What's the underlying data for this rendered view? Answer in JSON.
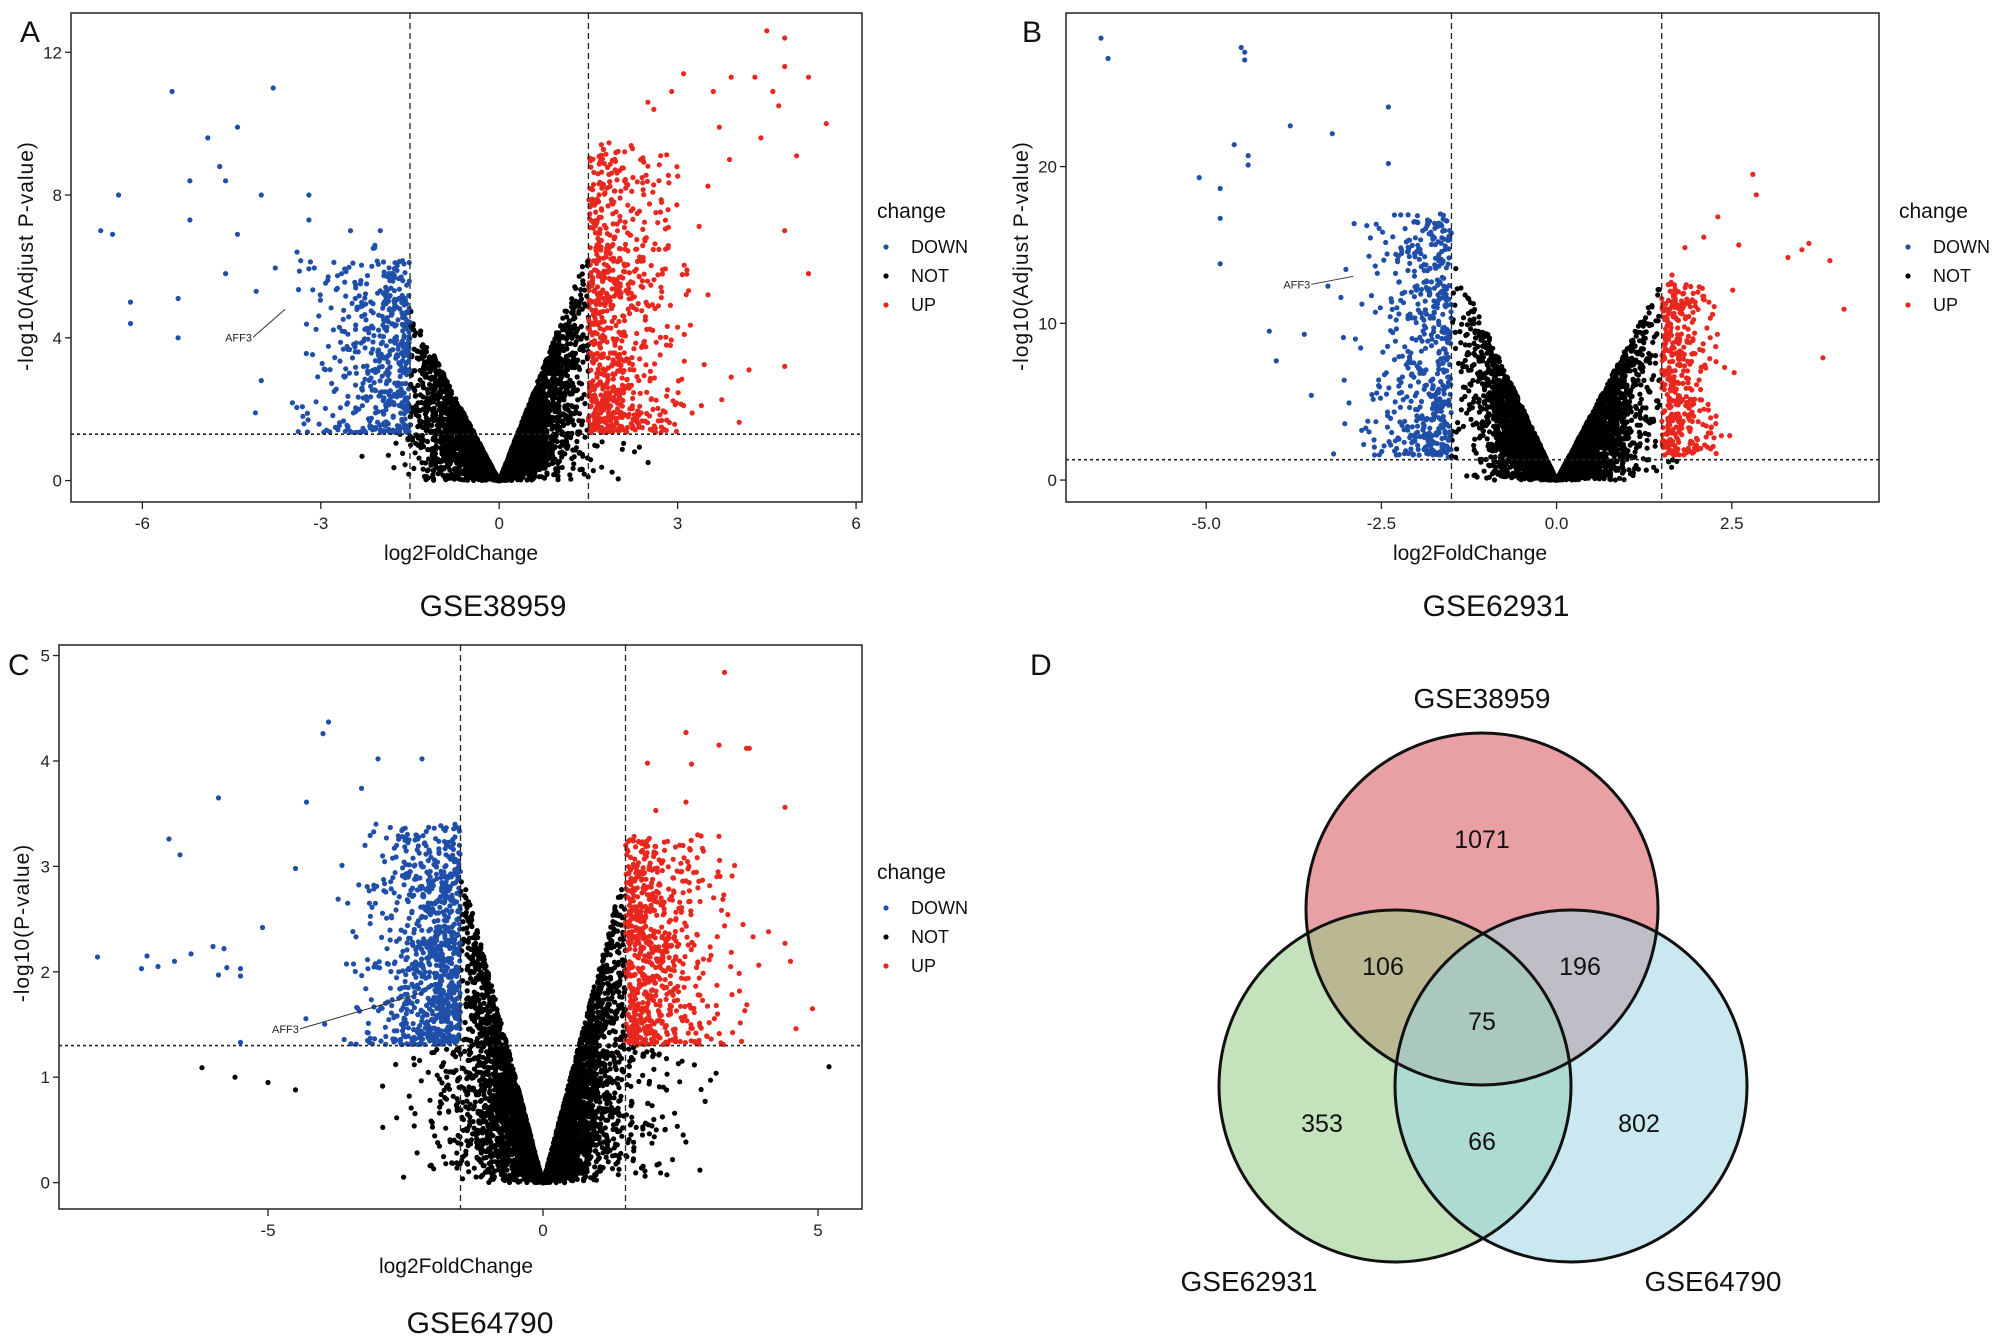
{
  "legend": {
    "title": "change",
    "items": [
      {
        "label": "DOWN",
        "color": "#1f4fa8"
      },
      {
        "label": "NOT",
        "color": "#000000"
      },
      {
        "label": "UP",
        "color": "#e8281e"
      }
    ]
  },
  "chart_data": [
    {
      "type": "scatter",
      "panel": "A",
      "title": "GSE38959",
      "xlabel": "log2FoldChange",
      "ylabel": "-log10(Adjust P-value)",
      "xlim": [
        -7.2,
        6.1
      ],
      "ylim": [
        -0.6,
        13.1
      ],
      "xticks": [
        "-6",
        "-3",
        "0",
        "3",
        "6"
      ],
      "yticks": [
        "0",
        "4",
        "8",
        "12"
      ],
      "fc_threshold": 1.5,
      "p_threshold": 1.3,
      "legend": "right",
      "annotation": {
        "label": "AFF3",
        "x": -3.6,
        "y": 4.8
      },
      "DOWN": [
        [
          -5.5,
          10.9
        ],
        [
          -3.8,
          11
        ],
        [
          -4.4,
          9.9
        ],
        [
          -4.9,
          9.6
        ],
        [
          -4.7,
          8.8
        ],
        [
          -4.6,
          8.4
        ],
        [
          -6.4,
          8
        ],
        [
          -5.2,
          8.4
        ],
        [
          -4,
          8
        ],
        [
          -3.2,
          8
        ],
        [
          -6.7,
          7
        ],
        [
          -6.5,
          6.9
        ],
        [
          -5.2,
          7.3
        ],
        [
          -4.4,
          6.9
        ],
        [
          -4.6,
          5.8
        ],
        [
          -6.2,
          5
        ],
        [
          -6.2,
          4.4
        ],
        [
          -5.4,
          5.1
        ],
        [
          -5.4,
          4
        ],
        [
          -4,
          2.8
        ],
        [
          -4.1,
          1.9
        ],
        [
          -3.3,
          1.8
        ],
        [
          -2.5,
          7
        ],
        [
          -2,
          7
        ],
        [
          -3.4,
          6.4
        ],
        [
          -3.2,
          7.3
        ]
      ],
      "UP": [
        [
          4.5,
          12.6
        ],
        [
          4.8,
          12.4
        ],
        [
          4.8,
          11.6
        ],
        [
          5.2,
          11.3
        ],
        [
          3.1,
          11.4
        ],
        [
          3.9,
          11.3
        ],
        [
          4.3,
          11.3
        ],
        [
          2.9,
          10.9
        ],
        [
          3.6,
          10.9
        ],
        [
          4.6,
          10.9
        ],
        [
          2.5,
          10.6
        ],
        [
          5.5,
          10
        ],
        [
          2.6,
          10.4
        ],
        [
          3.7,
          9.9
        ],
        [
          4.7,
          10.5
        ],
        [
          5.0,
          9.1
        ],
        [
          4.4,
          9.6
        ],
        [
          4.8,
          7
        ],
        [
          5.2,
          5.8
        ],
        [
          4.8,
          3.2
        ],
        [
          3.9,
          2.9
        ],
        [
          3.4,
          2.1
        ],
        [
          3.1,
          2.1
        ],
        [
          4.2,
          3.1
        ]
      ],
      "NOT": []
    },
    {
      "type": "scatter",
      "panel": "B",
      "title": "GSE62931",
      "xlabel": "log2FoldChange",
      "ylabel": "-log10(Adjust P-value)",
      "xlim": [
        -7.0,
        4.6
      ],
      "ylim": [
        -1.4,
        29.8
      ],
      "xticks": [
        "-5.0",
        "-2.5",
        "0.0",
        "2.5"
      ],
      "yticks": [
        "0",
        "10",
        "20"
      ],
      "fc_threshold": 1.5,
      "p_threshold": 1.3,
      "legend": "right",
      "annotation": {
        "label": "AFF3",
        "x": -2.9,
        "y": 13
      },
      "DOWN": [
        [
          -6.5,
          28.2
        ],
        [
          -6.4,
          26.9
        ],
        [
          -4.5,
          27.6
        ],
        [
          -4.45,
          27.3
        ],
        [
          -4.45,
          26.8
        ],
        [
          -2.4,
          23.8
        ],
        [
          -3.8,
          22.6
        ],
        [
          -3.2,
          22.1
        ],
        [
          -4.6,
          21.4
        ],
        [
          -4.4,
          20.7
        ],
        [
          -4.4,
          20.1
        ],
        [
          -5.1,
          19.3
        ],
        [
          -4.8,
          18.6
        ],
        [
          -4.8,
          16.7
        ],
        [
          -4.8,
          13.8
        ],
        [
          -4.1,
          9.5
        ],
        [
          -4,
          7.6
        ],
        [
          -3.5,
          5.4
        ],
        [
          -2.6,
          2.1
        ],
        [
          -3.6,
          9.3
        ],
        [
          -2.4,
          20.2
        ]
      ],
      "UP": [
        [
          2.8,
          19.5
        ],
        [
          2.85,
          18.2
        ],
        [
          2.3,
          16.8
        ],
        [
          2.1,
          15.5
        ],
        [
          3.6,
          15.1
        ],
        [
          3.5,
          14.7
        ],
        [
          3.9,
          14
        ],
        [
          4.1,
          10.9
        ],
        [
          3.8,
          7.8
        ],
        [
          2.2,
          3
        ],
        [
          3.3,
          14.2
        ],
        [
          2.6,
          15
        ]
      ],
      "NOT": []
    },
    {
      "type": "scatter",
      "panel": "C",
      "title": "GSE64790",
      "xlabel": "log2FoldChange",
      "ylabel": "-log10(P-value)",
      "xlim": [
        -8.8,
        5.8
      ],
      "ylim": [
        -0.25,
        5.1
      ],
      "xticks": [
        "-5",
        "0",
        "5"
      ],
      "yticks": [
        "0",
        "1",
        "2",
        "3",
        "4",
        "5"
      ],
      "fc_threshold": 1.5,
      "p_threshold": 1.3,
      "legend": "right",
      "annotation": {
        "label": "AFF3",
        "x": -2.2,
        "y": 1.8
      },
      "DOWN": [
        [
          -8.1,
          2.14
        ],
        [
          -7.3,
          2.03
        ],
        [
          -7.2,
          2.15
        ],
        [
          -7,
          2.05
        ],
        [
          -6.8,
          3.26
        ],
        [
          -6.6,
          3.11
        ],
        [
          -6.7,
          2.1
        ],
        [
          -6.4,
          2.17
        ],
        [
          -6.0,
          2.24
        ],
        [
          -5.9,
          3.65
        ],
        [
          -5.9,
          1.97
        ],
        [
          -5.8,
          2.22
        ],
        [
          -5.75,
          2.04
        ],
        [
          -5.5,
          1.96
        ],
        [
          -5.5,
          2.03
        ],
        [
          -4,
          4.26
        ],
        [
          -3.9,
          4.37
        ],
        [
          -4.3,
          3.61
        ],
        [
          -3,
          4.02
        ],
        [
          -2.2,
          4.02
        ],
        [
          -3.3,
          3.74
        ],
        [
          -4.5,
          2.98
        ],
        [
          -5.1,
          2.42
        ],
        [
          -5.5,
          1.33
        ]
      ],
      "UP": [
        [
          3.3,
          4.84
        ],
        [
          2.6,
          4.27
        ],
        [
          3.2,
          4.15
        ],
        [
          3.7,
          4.12
        ],
        [
          3.75,
          4.12
        ],
        [
          1.9,
          3.98
        ],
        [
          2.7,
          3.97
        ],
        [
          2.6,
          3.61
        ],
        [
          2.05,
          3.53
        ],
        [
          4.4,
          3.56
        ],
        [
          4.6,
          1.46
        ],
        [
          4.9,
          1.65
        ],
        [
          4.5,
          2.1
        ],
        [
          4.4,
          2.27
        ],
        [
          4.1,
          2.38
        ]
      ],
      "NOT": [
        [
          -6.2,
          1.09
        ],
        [
          -5.6,
          1.0
        ],
        [
          -5,
          0.95
        ],
        [
          5.2,
          1.1
        ],
        [
          -4.5,
          0.88
        ]
      ]
    },
    {
      "type": "venn",
      "panel": "D",
      "sets": [
        {
          "name": "GSE38959",
          "color": "#e58f94"
        },
        {
          "name": "GSE62931",
          "color": "#93cc85"
        },
        {
          "name": "GSE64790",
          "color": "#9dd5e1"
        }
      ],
      "regions": {
        "only_GSE38959": "1071",
        "only_GSE62931": "353",
        "only_GSE64790": "802",
        "GSE38959_GSE62931": "106",
        "GSE38959_GSE64790": "196",
        "GSE62931_GSE64790": "66",
        "all_three": "75"
      }
    }
  ]
}
